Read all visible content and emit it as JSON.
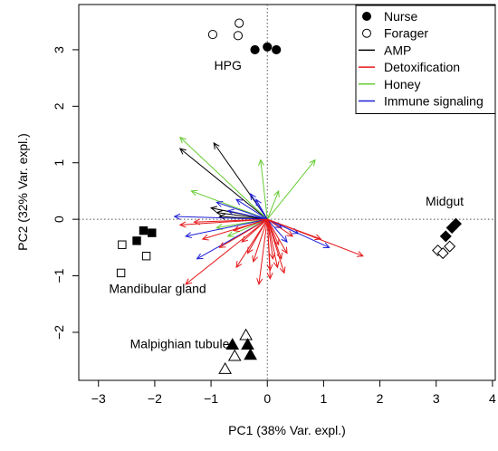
{
  "chart_data": {
    "type": "scatter",
    "subtype": "pca-biplot",
    "xlabel": "PC1 (38% Var. expl.)",
    "ylabel": "PC2 (32% Var. expl.)",
    "xlim": [
      -3.35,
      4.05
    ],
    "ylim": [
      -2.85,
      3.8
    ],
    "xticks": [
      -3,
      -2,
      -1,
      0,
      1,
      2,
      3,
      4
    ],
    "yticks": [
      -2,
      -1,
      0,
      1,
      2,
      3
    ],
    "reference_lines": {
      "x": 0,
      "y": 0,
      "style": "dotted"
    },
    "legend": {
      "position": "top-right",
      "items": [
        {
          "label": "Nurse",
          "kind": "point",
          "symbol": "circle",
          "filled": true,
          "color": "#000000"
        },
        {
          "label": "Forager",
          "kind": "point",
          "symbol": "circle",
          "filled": false,
          "color": "#000000"
        },
        {
          "label": "AMP",
          "kind": "line",
          "color": "#000000"
        },
        {
          "label": "Detoxification",
          "kind": "line",
          "color": "#e41a1c"
        },
        {
          "label": "Honey",
          "kind": "line",
          "color": "#66cc33"
        },
        {
          "label": "Immune signaling",
          "kind": "line",
          "color": "#1f1fd6"
        }
      ]
    },
    "groups": [
      {
        "label": "HPG",
        "label_pos": [
          -0.7,
          2.65
        ],
        "symbol": "circle",
        "points": [
          {
            "x": -0.5,
            "y": 3.47,
            "filled": false
          },
          {
            "x": -0.97,
            "y": 3.27,
            "filled": false
          },
          {
            "x": -0.52,
            "y": 3.25,
            "filled": false
          },
          {
            "x": -0.22,
            "y": 3.0,
            "filled": true
          },
          {
            "x": 0.0,
            "y": 3.05,
            "filled": true
          },
          {
            "x": 0.16,
            "y": 3.0,
            "filled": true
          }
        ]
      },
      {
        "label": "Midgut",
        "label_pos": [
          3.15,
          0.24
        ],
        "symbol": "diamond",
        "points": [
          {
            "x": 3.35,
            "y": -0.08,
            "filled": true
          },
          {
            "x": 3.28,
            "y": -0.15,
            "filled": true
          },
          {
            "x": 3.17,
            "y": -0.3,
            "filled": true
          },
          {
            "x": 3.03,
            "y": -0.55,
            "filled": false
          },
          {
            "x": 3.12,
            "y": -0.6,
            "filled": false
          },
          {
            "x": 3.24,
            "y": -0.48,
            "filled": false
          }
        ]
      },
      {
        "label": "Mandibular gland",
        "label_pos": [
          -1.95,
          -1.3
        ],
        "symbol": "square",
        "points": [
          {
            "x": -2.2,
            "y": -0.2,
            "filled": true
          },
          {
            "x": -2.05,
            "y": -0.24,
            "filled": true
          },
          {
            "x": -2.32,
            "y": -0.38,
            "filled": true
          },
          {
            "x": -2.58,
            "y": -0.45,
            "filled": false
          },
          {
            "x": -2.15,
            "y": -0.65,
            "filled": false
          },
          {
            "x": -2.6,
            "y": -0.95,
            "filled": false
          }
        ]
      },
      {
        "label": "Malpighian tubules",
        "label_pos": [
          -1.5,
          -2.28
        ],
        "symbol": "triangle",
        "points": [
          {
            "x": -0.38,
            "y": -2.05,
            "filled": false
          },
          {
            "x": -0.62,
            "y": -2.22,
            "filled": true
          },
          {
            "x": -0.35,
            "y": -2.22,
            "filled": true
          },
          {
            "x": -0.3,
            "y": -2.4,
            "filled": true
          },
          {
            "x": -0.58,
            "y": -2.42,
            "filled": false
          },
          {
            "x": -0.75,
            "y": -2.65,
            "filled": false
          }
        ]
      }
    ],
    "loading_vectors": [
      {
        "category": "AMP",
        "x": -0.95,
        "y": 1.35
      },
      {
        "category": "AMP",
        "x": -1.55,
        "y": 1.25
      },
      {
        "category": "AMP",
        "x": -1.0,
        "y": 0.2
      },
      {
        "category": "AMP",
        "x": -0.85,
        "y": 0.05
      },
      {
        "category": "AMP",
        "x": -0.9,
        "y": 0.12
      },
      {
        "category": "Honey",
        "x": -1.55,
        "y": 1.45
      },
      {
        "category": "Honey",
        "x": -0.12,
        "y": 1.05
      },
      {
        "category": "Honey",
        "x": 0.2,
        "y": 0.5
      },
      {
        "category": "Honey",
        "x": 0.85,
        "y": 1.05
      },
      {
        "category": "Honey",
        "x": -1.35,
        "y": 0.5
      },
      {
        "category": "Honey",
        "x": -0.9,
        "y": -0.15
      },
      {
        "category": "Honey",
        "x": -0.7,
        "y": -0.3
      },
      {
        "category": "Immune signaling",
        "x": -1.65,
        "y": 0.05
      },
      {
        "category": "Immune signaling",
        "x": -1.45,
        "y": -0.3
      },
      {
        "category": "Immune signaling",
        "x": -1.25,
        "y": -0.7
      },
      {
        "category": "Immune signaling",
        "x": -0.9,
        "y": 0.3
      },
      {
        "category": "Immune signaling",
        "x": -0.55,
        "y": 0.35
      },
      {
        "category": "Immune signaling",
        "x": -0.3,
        "y": 0.45
      },
      {
        "category": "Immune signaling",
        "x": -0.2,
        "y": 0.35
      },
      {
        "category": "Immune signaling",
        "x": 1.1,
        "y": -0.5
      },
      {
        "category": "Immune signaling",
        "x": 0.55,
        "y": -0.25
      },
      {
        "category": "Immune signaling",
        "x": 0.35,
        "y": -0.4
      },
      {
        "category": "Immune signaling",
        "x": -0.7,
        "y": 0.15
      },
      {
        "category": "Immune signaling",
        "x": 0.25,
        "y": -0.15
      },
      {
        "category": "Detoxification",
        "x": -1.45,
        "y": -1.15
      },
      {
        "category": "Detoxification",
        "x": -1.55,
        "y": -0.1
      },
      {
        "category": "Detoxification",
        "x": -1.3,
        "y": -0.05
      },
      {
        "category": "Detoxification",
        "x": -1.15,
        "y": -0.35
      },
      {
        "category": "Detoxification",
        "x": -0.85,
        "y": -0.5
      },
      {
        "category": "Detoxification",
        "x": -0.55,
        "y": -0.85
      },
      {
        "category": "Detoxification",
        "x": -0.35,
        "y": -0.6
      },
      {
        "category": "Detoxification",
        "x": -0.15,
        "y": -1.15
      },
      {
        "category": "Detoxification",
        "x": 0.05,
        "y": -1.05
      },
      {
        "category": "Detoxification",
        "x": 0.18,
        "y": -0.85
      },
      {
        "category": "Detoxification",
        "x": 0.3,
        "y": -0.95
      },
      {
        "category": "Detoxification",
        "x": 0.35,
        "y": -0.6
      },
      {
        "category": "Detoxification",
        "x": 0.2,
        "y": -0.45
      },
      {
        "category": "Detoxification",
        "x": 0.45,
        "y": -0.3
      },
      {
        "category": "Detoxification",
        "x": 0.95,
        "y": -0.35
      },
      {
        "category": "Detoxification",
        "x": 1.7,
        "y": -0.65
      },
      {
        "category": "Detoxification",
        "x": -0.25,
        "y": -0.75
      },
      {
        "category": "Detoxification",
        "x": 0.1,
        "y": -0.7
      },
      {
        "category": "Detoxification",
        "x": -0.45,
        "y": -0.4
      },
      {
        "category": "Detoxification",
        "x": -0.6,
        "y": -0.2
      },
      {
        "category": "Detoxification",
        "x": 0.05,
        "y": -0.9
      },
      {
        "category": "Detoxification",
        "x": 0.25,
        "y": -0.7
      }
    ]
  }
}
